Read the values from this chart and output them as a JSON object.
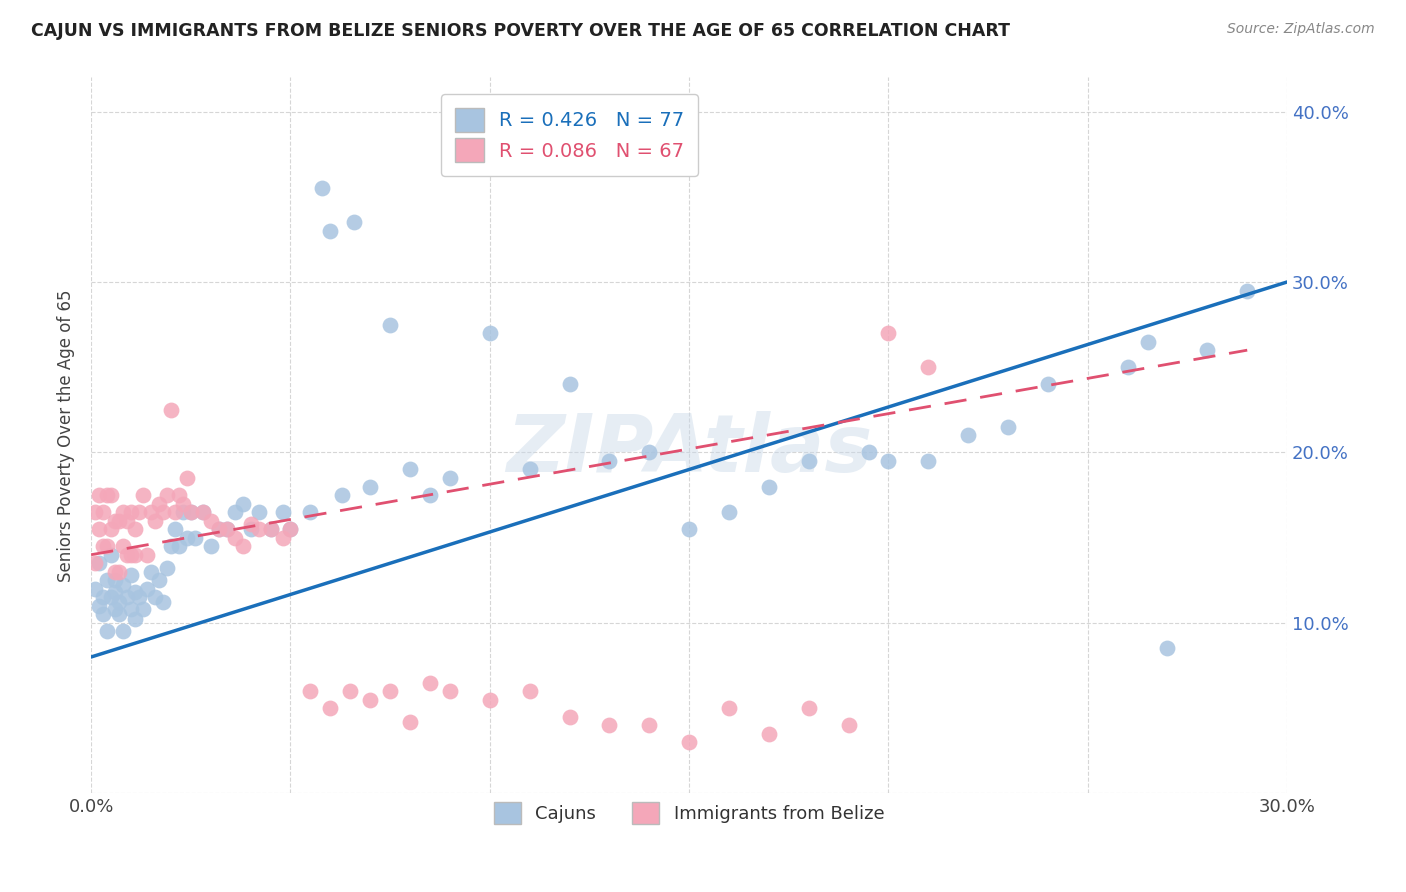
{
  "title": "CAJUN VS IMMIGRANTS FROM BELIZE SENIORS POVERTY OVER THE AGE OF 65 CORRELATION CHART",
  "source": "Source: ZipAtlas.com",
  "ylabel": "Seniors Poverty Over the Age of 65",
  "xlim": [
    0.0,
    0.3
  ],
  "ylim": [
    0.0,
    0.42
  ],
  "xtick_positions": [
    0.0,
    0.05,
    0.1,
    0.15,
    0.2,
    0.25,
    0.3
  ],
  "xtick_labels": [
    "0.0%",
    "",
    "",
    "",
    "",
    "",
    "30.0%"
  ],
  "ytick_positions": [
    0.0,
    0.1,
    0.2,
    0.3,
    0.4
  ],
  "ytick_labels": [
    "",
    "10.0%",
    "20.0%",
    "30.0%",
    "40.0%"
  ],
  "cajun_R": 0.426,
  "cajun_N": 77,
  "belize_R": 0.086,
  "belize_N": 67,
  "cajun_color": "#a8c4e0",
  "belize_color": "#f4a7b9",
  "cajun_line_color": "#1a6fba",
  "belize_line_color": "#e05070",
  "watermark": "ZIPAtlas",
  "legend_label_cajun": "Cajuns",
  "legend_label_belize": "Immigrants from Belize",
  "cajun_line": [
    0.0,
    0.08,
    0.3,
    0.3
  ],
  "belize_line": [
    0.0,
    0.14,
    0.29,
    0.26
  ],
  "cajun_x": [
    0.001,
    0.002,
    0.002,
    0.003,
    0.003,
    0.004,
    0.004,
    0.005,
    0.005,
    0.006,
    0.006,
    0.006,
    0.007,
    0.007,
    0.008,
    0.008,
    0.009,
    0.01,
    0.01,
    0.011,
    0.011,
    0.012,
    0.013,
    0.014,
    0.015,
    0.016,
    0.017,
    0.018,
    0.019,
    0.02,
    0.021,
    0.022,
    0.023,
    0.024,
    0.025,
    0.026,
    0.028,
    0.03,
    0.032,
    0.034,
    0.036,
    0.038,
    0.04,
    0.042,
    0.045,
    0.048,
    0.05,
    0.055,
    0.058,
    0.06,
    0.063,
    0.066,
    0.07,
    0.075,
    0.08,
    0.085,
    0.09,
    0.1,
    0.11,
    0.12,
    0.13,
    0.14,
    0.15,
    0.16,
    0.17,
    0.18,
    0.195,
    0.2,
    0.21,
    0.22,
    0.23,
    0.24,
    0.26,
    0.265,
    0.27,
    0.28,
    0.29
  ],
  "cajun_y": [
    0.12,
    0.135,
    0.11,
    0.115,
    0.105,
    0.095,
    0.125,
    0.115,
    0.14,
    0.108,
    0.118,
    0.125,
    0.105,
    0.112,
    0.122,
    0.095,
    0.115,
    0.108,
    0.128,
    0.102,
    0.118,
    0.115,
    0.108,
    0.12,
    0.13,
    0.115,
    0.125,
    0.112,
    0.132,
    0.145,
    0.155,
    0.145,
    0.165,
    0.15,
    0.165,
    0.15,
    0.165,
    0.145,
    0.155,
    0.155,
    0.165,
    0.17,
    0.155,
    0.165,
    0.155,
    0.165,
    0.155,
    0.165,
    0.355,
    0.33,
    0.175,
    0.335,
    0.18,
    0.275,
    0.19,
    0.175,
    0.185,
    0.27,
    0.19,
    0.24,
    0.195,
    0.2,
    0.155,
    0.165,
    0.18,
    0.195,
    0.2,
    0.195,
    0.195,
    0.21,
    0.215,
    0.24,
    0.25,
    0.265,
    0.085,
    0.26,
    0.295
  ],
  "belize_x": [
    0.001,
    0.001,
    0.002,
    0.002,
    0.003,
    0.003,
    0.004,
    0.004,
    0.005,
    0.005,
    0.006,
    0.006,
    0.007,
    0.007,
    0.008,
    0.008,
    0.009,
    0.009,
    0.01,
    0.01,
    0.011,
    0.011,
    0.012,
    0.013,
    0.014,
    0.015,
    0.016,
    0.017,
    0.018,
    0.019,
    0.02,
    0.021,
    0.022,
    0.023,
    0.024,
    0.025,
    0.028,
    0.03,
    0.032,
    0.034,
    0.036,
    0.038,
    0.04,
    0.042,
    0.045,
    0.048,
    0.05,
    0.055,
    0.06,
    0.065,
    0.07,
    0.075,
    0.08,
    0.085,
    0.09,
    0.1,
    0.11,
    0.12,
    0.13,
    0.14,
    0.15,
    0.16,
    0.17,
    0.18,
    0.19,
    0.2,
    0.21
  ],
  "belize_y": [
    0.135,
    0.165,
    0.155,
    0.175,
    0.145,
    0.165,
    0.145,
    0.175,
    0.155,
    0.175,
    0.13,
    0.16,
    0.13,
    0.16,
    0.145,
    0.165,
    0.14,
    0.16,
    0.14,
    0.165,
    0.14,
    0.155,
    0.165,
    0.175,
    0.14,
    0.165,
    0.16,
    0.17,
    0.165,
    0.175,
    0.225,
    0.165,
    0.175,
    0.17,
    0.185,
    0.165,
    0.165,
    0.16,
    0.155,
    0.155,
    0.15,
    0.145,
    0.158,
    0.155,
    0.155,
    0.15,
    0.155,
    0.06,
    0.05,
    0.06,
    0.055,
    0.06,
    0.042,
    0.065,
    0.06,
    0.055,
    0.06,
    0.045,
    0.04,
    0.04,
    0.03,
    0.05,
    0.035,
    0.05,
    0.04,
    0.27,
    0.25
  ]
}
